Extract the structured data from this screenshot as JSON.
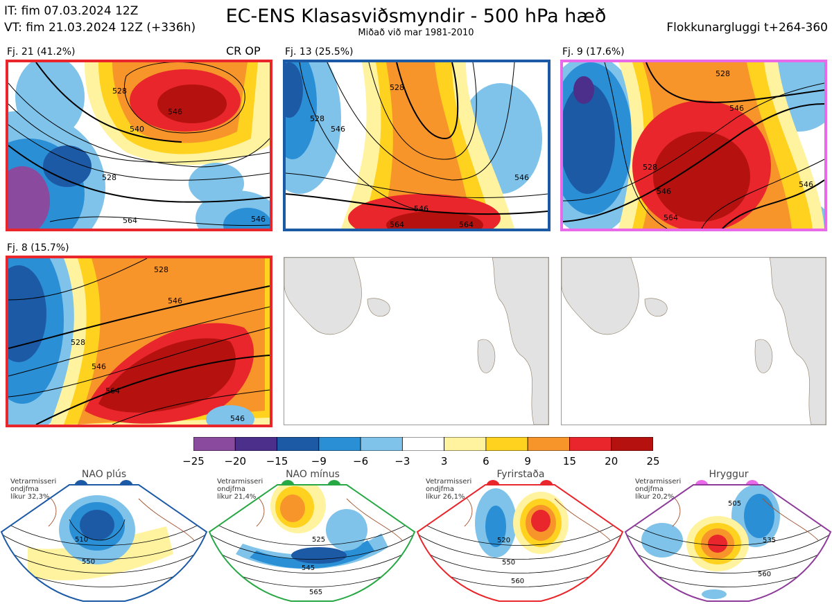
{
  "header": {
    "it": "IT: fim 07.03.2024 12Z",
    "vt": "VT: fim 21.03.2024 12Z  (+336h)",
    "title": "EC-ENS Klasasviðsmyndir - 500 hPa hæð",
    "subtitle": "Miðað við mar 1981-2010",
    "window": "Flokkunargluggi t+264-360"
  },
  "panels": [
    {
      "label": "Fj. 21 (41.2%)",
      "tag": "CR OP",
      "frame_color": "#e8262b",
      "contour_labels": [
        "528",
        "540",
        "528",
        "546",
        "564",
        "546"
      ]
    },
    {
      "label": "Fj. 13 (25.5%)",
      "tag": "",
      "frame_color": "#1c5aa6",
      "contour_labels": [
        "528",
        "546",
        "528",
        "546",
        "564",
        "546",
        "564"
      ]
    },
    {
      "label": "Fj. 9 (17.6%)",
      "tag": "",
      "frame_color": "#e86ae8",
      "contour_labels": [
        "528",
        "546",
        "528",
        "546",
        "564",
        "546"
      ]
    },
    {
      "label": "Fj. 8 (15.7%)",
      "tag": "",
      "frame_color": "#e8262b",
      "contour_labels": [
        "528",
        "546",
        "528",
        "546",
        "564",
        "546"
      ]
    }
  ],
  "colorbar": {
    "ticks": [
      "−25",
      "−20",
      "−15",
      "−9",
      "−6",
      "−3",
      "3",
      "6",
      "9",
      "15",
      "20",
      "25"
    ],
    "colors": [
      "#8a4a9e",
      "#4b2f8a",
      "#1c5aa6",
      "#2b8fd6",
      "#7fc3ea",
      "#ffffff",
      "#fff3a0",
      "#ffd21f",
      "#f7952b",
      "#e8262b",
      "#b5120f"
    ]
  },
  "regimes": [
    {
      "name": "NAO plús",
      "note": [
        "Vetrarmisseri",
        "ondjfma",
        "líkur 32,3%"
      ],
      "dot_color": "#1c5aa6",
      "frame_color": "#1c5aa6",
      "contour_labels": [
        "510",
        "550"
      ]
    },
    {
      "name": "NAO mínus",
      "note": [
        "Vetrarmisseri",
        "ondjfma",
        "líkur 21,4%"
      ],
      "dot_color": "#27a844",
      "frame_color": "#27a844",
      "contour_labels": [
        "525",
        "545",
        "565"
      ]
    },
    {
      "name": "Fyrirstaða",
      "note": [
        "Vetrarmisseri",
        "ondjfma",
        "líkur 26,1%"
      ],
      "dot_color": "#e8262b",
      "frame_color": "#e8262b",
      "contour_labels": [
        "520",
        "550",
        "560"
      ]
    },
    {
      "name": "Hryggur",
      "note": [
        "Vetrarmisseri",
        "ondjfma",
        "líkur 20,2%"
      ],
      "dot_color": "#e86ae8",
      "frame_color": "#8e3a9a",
      "contour_labels": [
        "505",
        "535",
        "560"
      ]
    }
  ]
}
